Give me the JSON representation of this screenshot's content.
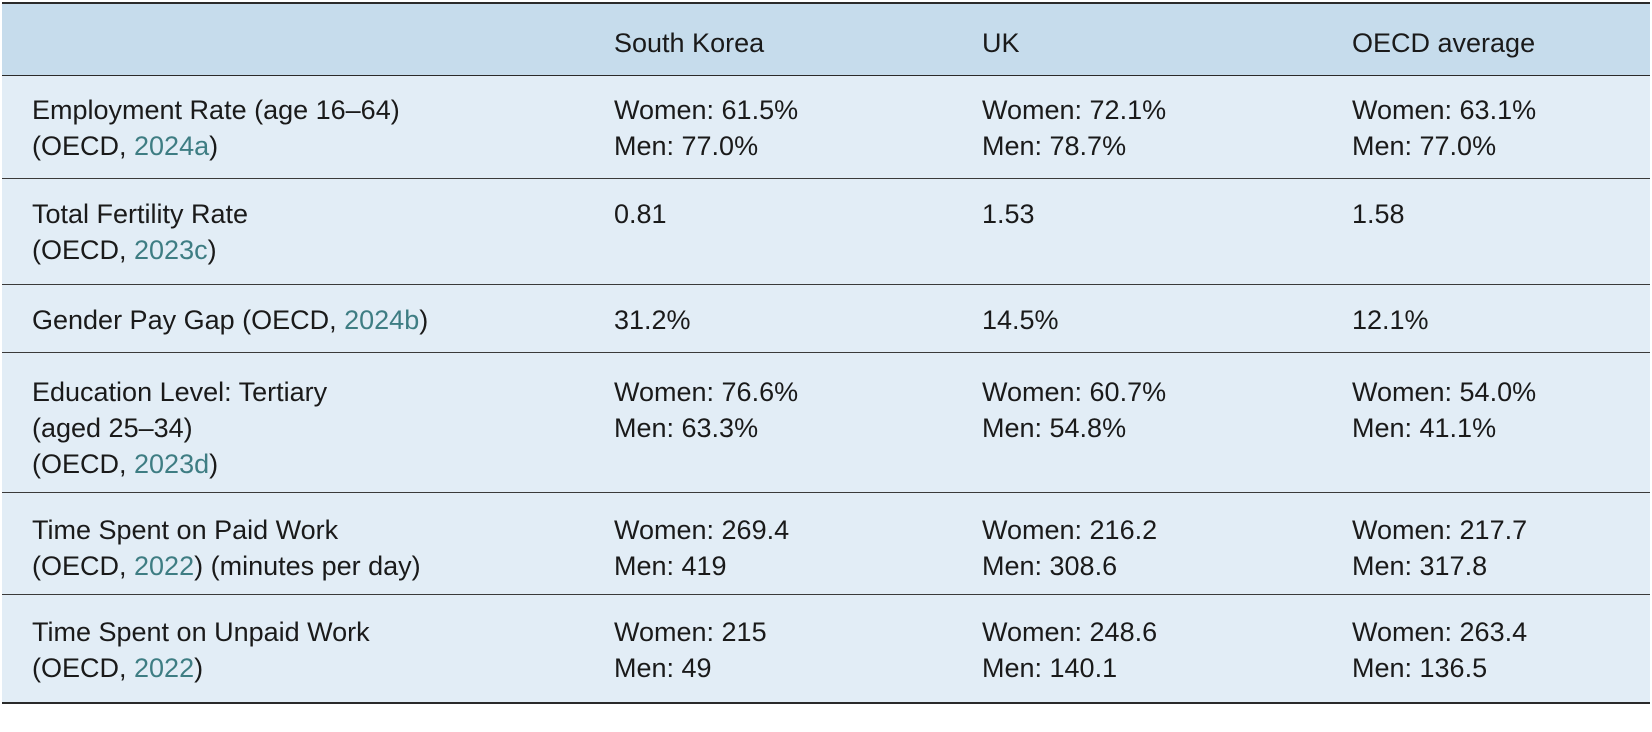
{
  "columns": [
    "",
    "South Korea",
    "UK",
    "OECD average"
  ],
  "rows": [
    {
      "label_pre": "Employment Rate (age 16–64)",
      "label_src_open": "(OECD, ",
      "cite": "2024a",
      "label_src_close": ")",
      "label_mid": "",
      "korea": [
        "Women: 61.5%",
        "Men: 77.0%"
      ],
      "uk": [
        "Women: 72.1%",
        "Men: 78.7%"
      ],
      "oecd": [
        "Women: 63.1%",
        "Men: 77.0%"
      ]
    },
    {
      "label_pre": "Total Fertility Rate",
      "label_src_open": "(OECD, ",
      "cite": "2023c",
      "label_src_close": ")",
      "label_mid": "",
      "korea": [
        "0.81"
      ],
      "uk": [
        "1.53"
      ],
      "oecd": [
        "1.58"
      ]
    },
    {
      "label_pre": "Gender Pay Gap (OECD, ",
      "cite": "2024b",
      "label_src_close": ")",
      "korea": [
        "31.2%"
      ],
      "uk": [
        "14.5%"
      ],
      "oecd": [
        "12.1%"
      ]
    },
    {
      "label_pre": "Education Level: Tertiary",
      "label_mid": "(aged 25–34)",
      "label_src_open": "(OECD, ",
      "cite": "2023d",
      "label_src_close": ")",
      "korea": [
        "Women: 76.6%",
        "Men: 63.3%"
      ],
      "uk": [
        "Women: 60.7%",
        "Men: 54.8%"
      ],
      "oecd": [
        "Women: 54.0%",
        "Men: 41.1%"
      ]
    },
    {
      "label_pre": "Time Spent on Paid Work",
      "label_src_open": "(OECD, ",
      "cite": "2022",
      "label_src_close": ") (minutes per day)",
      "korea": [
        "Women: 269.4",
        "Men: 419"
      ],
      "uk": [
        "Women: 216.2",
        "Men: 308.6"
      ],
      "oecd": [
        "Women: 217.7",
        "Men: 317.8"
      ]
    },
    {
      "label_pre": "Time Spent on Unpaid Work",
      "label_src_open": "(OECD, ",
      "cite": "2022",
      "label_src_close": ")",
      "korea": [
        "Women: 215",
        "Men: 49"
      ],
      "uk": [
        "Women: 248.6",
        "Men: 140.1"
      ],
      "oecd": [
        "Women: 263.4",
        "Men: 136.5"
      ]
    }
  ],
  "colors": {
    "header_bg": "#c6dcec",
    "row_bg": "#e2edf6",
    "citation": "#3e7d83",
    "rule": "#2a2a2a"
  }
}
